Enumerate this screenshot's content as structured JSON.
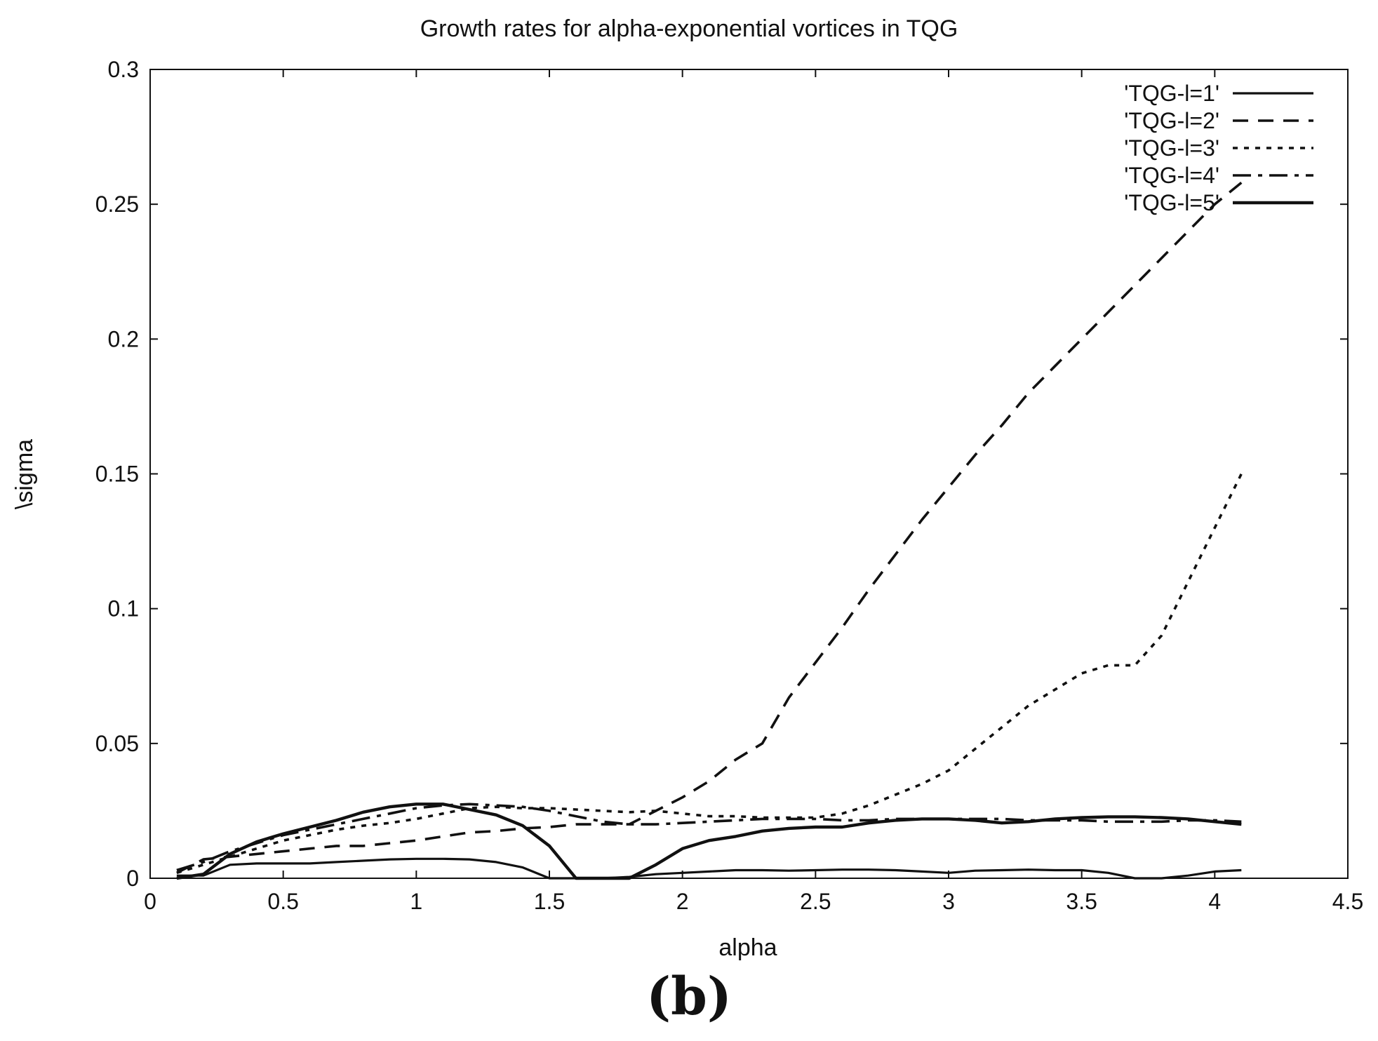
{
  "chart_data": {
    "type": "line",
    "title": "Growth rates for alpha-exponential vortices in TQG",
    "xlabel": "alpha",
    "ylabel": "\\sigma",
    "xlim": [
      0,
      4.5
    ],
    "ylim": [
      0,
      0.3
    ],
    "x_ticks": [
      "0",
      "0.5",
      "1",
      "1.5",
      "2",
      "2.5",
      "3",
      "3.5",
      "4",
      "4.5"
    ],
    "y_ticks": [
      "0",
      "0.05",
      "0.1",
      "0.15",
      "0.2",
      "0.25",
      "0.3"
    ],
    "grid": false,
    "legend_position": "top-right",
    "series": [
      {
        "name": "'TQG-l=1'",
        "style": "solid",
        "x": [
          0.1,
          0.2,
          0.3,
          0.4,
          0.5,
          0.6,
          0.7,
          0.8,
          0.9,
          1.0,
          1.1,
          1.2,
          1.3,
          1.4,
          1.5,
          1.6,
          1.7,
          1.8,
          1.9,
          2.0,
          2.1,
          2.2,
          2.3,
          2.4,
          2.5,
          2.6,
          2.7,
          2.8,
          2.9,
          3.0,
          3.1,
          3.2,
          3.3,
          3.4,
          3.5,
          3.6,
          3.7,
          3.8,
          3.9,
          4.0,
          4.1
        ],
        "y": [
          0.001,
          0.001,
          0.005,
          0.0055,
          0.0055,
          0.0055,
          0.006,
          0.0065,
          0.007,
          0.0072,
          0.0072,
          0.007,
          0.006,
          0.004,
          0.0,
          0.0,
          0.0,
          0.0005,
          0.0015,
          0.002,
          0.0025,
          0.003,
          0.003,
          0.0028,
          0.003,
          0.0032,
          0.0032,
          0.003,
          0.0025,
          0.002,
          0.0028,
          0.003,
          0.0032,
          0.003,
          0.003,
          0.002,
          0.0,
          0.0,
          0.001,
          0.0025,
          0.003
        ]
      },
      {
        "name": "'TQG-l=2'",
        "style": "dashed",
        "x": [
          0.1,
          0.2,
          0.3,
          0.4,
          0.5,
          0.6,
          0.7,
          0.8,
          0.9,
          1.0,
          1.1,
          1.2,
          1.3,
          1.4,
          1.5,
          1.6,
          1.7,
          1.8,
          1.9,
          2.0,
          2.1,
          2.2,
          2.3,
          2.4,
          2.5,
          2.6,
          2.7,
          2.8,
          2.9,
          3.0,
          3.1,
          3.2,
          3.3,
          3.4,
          3.5,
          3.6,
          3.7,
          3.8,
          3.9,
          4.0,
          4.1
        ],
        "y": [
          0.002,
          0.007,
          0.008,
          0.009,
          0.01,
          0.011,
          0.012,
          0.012,
          0.013,
          0.014,
          0.0155,
          0.017,
          0.0175,
          0.0185,
          0.019,
          0.02,
          0.02,
          0.02,
          0.025,
          0.03,
          0.036,
          0.044,
          0.05,
          0.067,
          0.08,
          0.093,
          0.107,
          0.12,
          0.133,
          0.145,
          0.157,
          0.168,
          0.18,
          0.19,
          0.2,
          0.21,
          0.22,
          0.23,
          0.24,
          0.25,
          0.258
        ]
      },
      {
        "name": "'TQG-l=3'",
        "style": "dotted",
        "x": [
          0.1,
          0.2,
          0.3,
          0.4,
          0.5,
          0.6,
          0.7,
          0.8,
          0.9,
          1.0,
          1.1,
          1.2,
          1.3,
          1.4,
          1.5,
          1.6,
          1.7,
          1.8,
          1.9,
          2.0,
          2.1,
          2.2,
          2.3,
          2.4,
          2.5,
          2.6,
          2.7,
          2.8,
          2.9,
          3.0,
          3.1,
          3.2,
          3.3,
          3.4,
          3.5,
          3.6,
          3.7,
          3.8,
          3.9,
          4.0,
          4.1
        ],
        "y": [
          0.002,
          0.005,
          0.008,
          0.011,
          0.014,
          0.016,
          0.018,
          0.0195,
          0.0205,
          0.022,
          0.024,
          0.026,
          0.0265,
          0.026,
          0.026,
          0.0255,
          0.025,
          0.0245,
          0.025,
          0.024,
          0.023,
          0.023,
          0.0225,
          0.0225,
          0.0225,
          0.024,
          0.027,
          0.031,
          0.035,
          0.04,
          0.048,
          0.056,
          0.064,
          0.07,
          0.076,
          0.079,
          0.079,
          0.09,
          0.11,
          0.13,
          0.15
        ]
      },
      {
        "name": "'TQG-l=4'",
        "style": "dash-dot",
        "x": [
          0.1,
          0.2,
          0.3,
          0.4,
          0.5,
          0.6,
          0.7,
          0.8,
          0.9,
          1.0,
          1.1,
          1.2,
          1.3,
          1.4,
          1.5,
          1.6,
          1.7,
          1.8,
          1.9,
          2.0,
          2.1,
          2.2,
          2.3,
          2.4,
          2.5,
          2.6,
          2.7,
          2.8,
          2.9,
          3.0,
          3.1,
          3.2,
          3.3,
          3.4,
          3.5,
          3.6,
          3.7,
          3.8,
          3.9,
          4.0,
          4.1
        ],
        "y": [
          0.003,
          0.006,
          0.01,
          0.013,
          0.016,
          0.018,
          0.02,
          0.022,
          0.024,
          0.026,
          0.027,
          0.0275,
          0.027,
          0.0265,
          0.025,
          0.023,
          0.021,
          0.02,
          0.02,
          0.0205,
          0.021,
          0.0215,
          0.022,
          0.022,
          0.022,
          0.0215,
          0.0215,
          0.022,
          0.022,
          0.022,
          0.022,
          0.022,
          0.0215,
          0.0215,
          0.0215,
          0.021,
          0.021,
          0.021,
          0.0215,
          0.0215,
          0.021
        ]
      },
      {
        "name": "'TQG-l=5'",
        "style": "solid-thick",
        "x": [
          0.1,
          0.2,
          0.3,
          0.4,
          0.5,
          0.6,
          0.7,
          0.8,
          0.9,
          1.0,
          1.1,
          1.2,
          1.3,
          1.4,
          1.5,
          1.6,
          1.7,
          1.8,
          1.9,
          2.0,
          2.1,
          2.2,
          2.3,
          2.4,
          2.5,
          2.6,
          2.7,
          2.8,
          2.9,
          3.0,
          3.1,
          3.2,
          3.3,
          3.4,
          3.5,
          3.6,
          3.7,
          3.8,
          3.9,
          4.0,
          4.1
        ],
        "y": [
          0.0,
          0.0015,
          0.009,
          0.0135,
          0.0165,
          0.019,
          0.0215,
          0.0245,
          0.0265,
          0.0275,
          0.0275,
          0.0255,
          0.0235,
          0.0195,
          0.012,
          0.0,
          0.0,
          0.0,
          0.005,
          0.011,
          0.014,
          0.0155,
          0.0175,
          0.0185,
          0.019,
          0.019,
          0.0205,
          0.0215,
          0.022,
          0.022,
          0.0215,
          0.0205,
          0.021,
          0.022,
          0.0225,
          0.0228,
          0.0228,
          0.0225,
          0.022,
          0.021,
          0.02
        ]
      }
    ]
  },
  "panel_label": "(b)"
}
